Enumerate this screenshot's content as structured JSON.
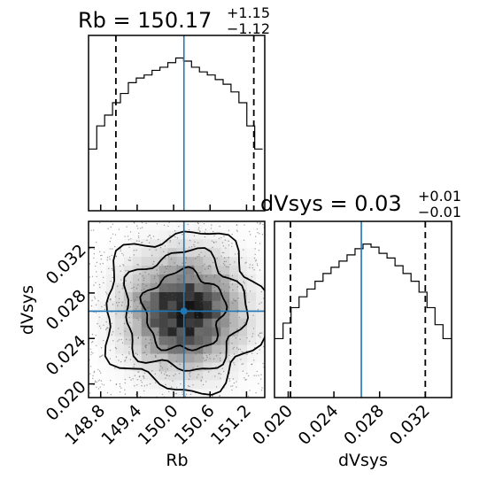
{
  "chart_data": [
    {
      "type": "histogram",
      "panel": "Rb marginal",
      "title_parts": {
        "text": "Rb = 150.17",
        "upper": "+1.15",
        "lower": "−1.12"
      },
      "xlim": [
        148.6,
        151.5
      ],
      "bin_centers": [
        148.67,
        148.8,
        148.93,
        149.06,
        149.19,
        149.32,
        149.45,
        149.58,
        149.71,
        149.84,
        149.97,
        150.1,
        150.23,
        150.36,
        150.49,
        150.62,
        150.75,
        150.88,
        151.01,
        151.14,
        151.27,
        151.4
      ],
      "counts": [
        0.4,
        0.55,
        0.62,
        0.7,
        0.76,
        0.83,
        0.86,
        0.88,
        0.91,
        0.93,
        0.96,
        0.99,
        0.97,
        0.93,
        0.9,
        0.88,
        0.85,
        0.82,
        0.77,
        0.7,
        0.55,
        0.4
      ],
      "quantiles": [
        149.05,
        150.17,
        151.32
      ],
      "truth": 150.17
    },
    {
      "type": "heatmap",
      "panel": "Rb vs dVsys",
      "xlabel": "Rb",
      "ylabel": "dVsys",
      "xlim": [
        148.6,
        151.5
      ],
      "ylim": [
        0.0188,
        0.0343
      ],
      "xticks": [
        "148.8",
        "149.4",
        "150.0",
        "150.6",
        "151.2"
      ],
      "xtick_values": [
        148.8,
        149.4,
        150.0,
        150.6,
        151.2
      ],
      "yticks": [
        "0.020",
        "0.024",
        "0.028",
        "0.032"
      ],
      "ytick_values": [
        0.02,
        0.024,
        0.028,
        0.032
      ],
      "center": [
        150.17,
        0.0264
      ],
      "sigma": [
        0.55,
        0.0029
      ],
      "contour_levels": [
        1.2,
        1.8,
        2.4
      ],
      "truth": [
        150.17,
        0.0264
      ]
    },
    {
      "type": "histogram",
      "panel": "dVsys marginal",
      "title_parts": {
        "text": "dVsys = 0.03",
        "upper": "+0.01",
        "lower": "−0.01"
      },
      "xlabel": "dVsys",
      "xlim": [
        0.0188,
        0.0343
      ],
      "xticks": [
        "0.020",
        "0.024",
        "0.028",
        "0.032"
      ],
      "xtick_values": [
        0.02,
        0.024,
        0.028,
        0.032
      ],
      "bin_centers": [
        0.0192,
        0.0199,
        0.0206,
        0.0213,
        0.022,
        0.0227,
        0.0234,
        0.0241,
        0.0248,
        0.0255,
        0.0262,
        0.0269,
        0.0276,
        0.0283,
        0.029,
        0.0297,
        0.0304,
        0.0311,
        0.0318,
        0.0325,
        0.0332,
        0.0339
      ],
      "counts": [
        0.38,
        0.48,
        0.58,
        0.65,
        0.7,
        0.75,
        0.8,
        0.84,
        0.88,
        0.92,
        0.96,
        0.99,
        0.97,
        0.93,
        0.9,
        0.85,
        0.8,
        0.75,
        0.68,
        0.58,
        0.47,
        0.38
      ],
      "quantiles": [
        0.0202,
        0.0264,
        0.032
      ],
      "truth": 0.0264
    }
  ]
}
